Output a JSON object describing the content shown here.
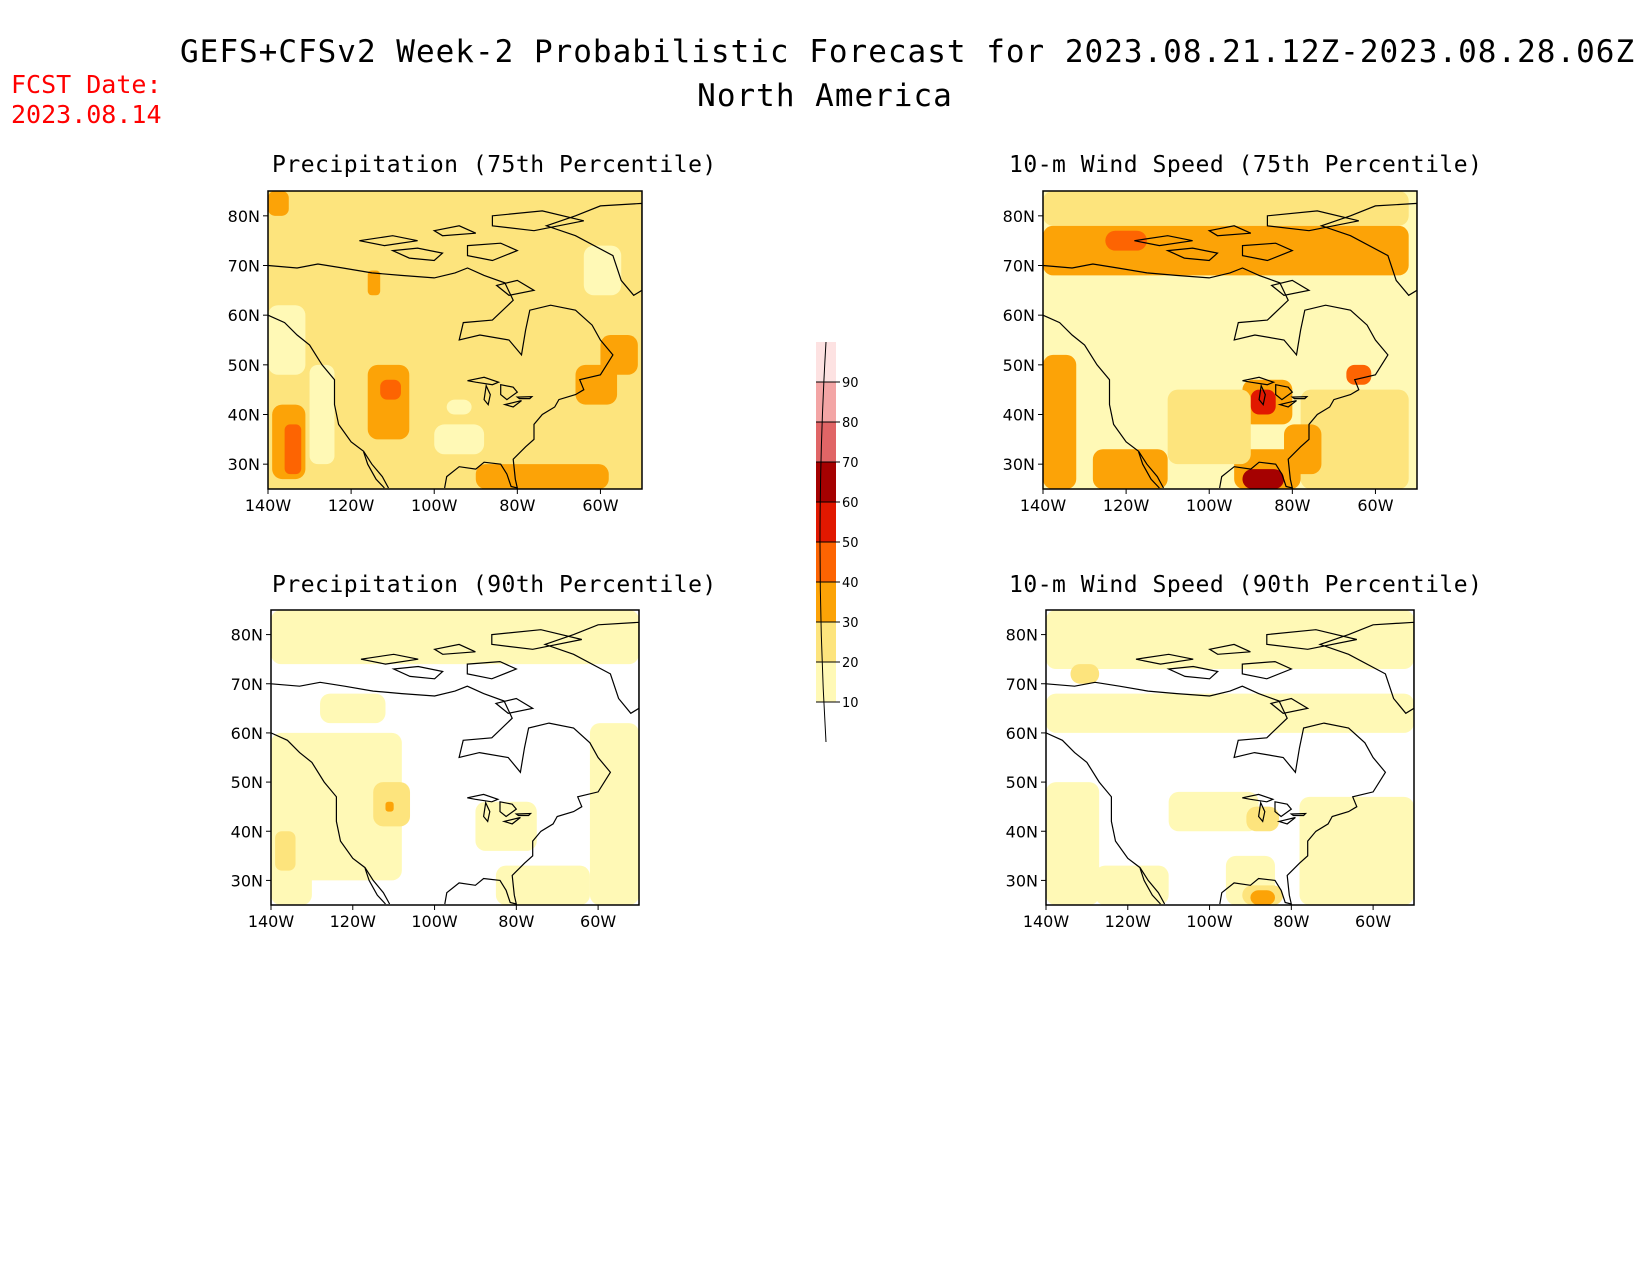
{
  "header": {
    "title_line1": "GEFS+CFSv2 Week-2 Probabilistic Forecast for 2023.08.21.12Z-2023.08.28.06Z",
    "title_line2": "North America",
    "fcst_label": "FCST Date:",
    "fcst_value": "2023.08.14"
  },
  "axes": {
    "lat_labels": [
      "80N",
      "70N",
      "60N",
      "50N",
      "40N",
      "30N"
    ],
    "lat_values": [
      80,
      70,
      60,
      50,
      40,
      30
    ],
    "lon_labels": [
      "140W",
      "120W",
      "100W",
      "80W",
      "60W"
    ],
    "lon_values": [
      -140,
      -120,
      -100,
      -80,
      -60
    ],
    "lat_range": [
      25,
      85
    ],
    "lon_range": [
      -140,
      -50
    ]
  },
  "colorbar": {
    "levels": [
      "10",
      "20",
      "30",
      "40",
      "50",
      "60",
      "70",
      "80",
      "90"
    ],
    "colors": [
      "#fff9b6",
      "#fde47d",
      "#fca307",
      "#fd6402",
      "#e11800",
      "#a50101",
      "#e06566",
      "#f3a5a5",
      "#fde2e2"
    ]
  },
  "panels": [
    {
      "title": "Precipitation (75th Percentile)",
      "background_color": "#fde47d",
      "regions": [
        {
          "level": 30,
          "lon": [
            -140,
            -135
          ],
          "lat": [
            80,
            85
          ]
        },
        {
          "level": 30,
          "lon": [
            -139,
            -131
          ],
          "lat": [
            27,
            42
          ]
        },
        {
          "level": 30,
          "lon": [
            -116,
            -106
          ],
          "lat": [
            35,
            50
          ]
        },
        {
          "level": 30,
          "lon": [
            -60,
            -51
          ],
          "lat": [
            48,
            56
          ]
        },
        {
          "level": 30,
          "lon": [
            -90,
            -58
          ],
          "lat": [
            25,
            30
          ]
        },
        {
          "level": 30,
          "lon": [
            -66,
            -56
          ],
          "lat": [
            42,
            50
          ]
        },
        {
          "level": 30,
          "lon": [
            -116,
            -113
          ],
          "lat": [
            64,
            69
          ]
        },
        {
          "level": 40,
          "lon": [
            -136,
            -132
          ],
          "lat": [
            28,
            38
          ]
        },
        {
          "level": 40,
          "lon": [
            -113,
            -108
          ],
          "lat": [
            43,
            47
          ]
        },
        {
          "level": 10,
          "lon": [
            -130,
            -124
          ],
          "lat": [
            30,
            50
          ]
        },
        {
          "level": 10,
          "lon": [
            -97,
            -91
          ],
          "lat": [
            40,
            43
          ]
        },
        {
          "level": 10,
          "lon": [
            -140,
            -131
          ],
          "lat": [
            48,
            62
          ]
        },
        {
          "level": 10,
          "lon": [
            -64,
            -55
          ],
          "lat": [
            64,
            74
          ]
        },
        {
          "level": 10,
          "lon": [
            -100,
            -88
          ],
          "lat": [
            32,
            38
          ]
        }
      ]
    },
    {
      "title": "10-m Wind Speed (75th Percentile)",
      "background_color": "#fff9b6",
      "regions": [
        {
          "level": 30,
          "lon": [
            -140,
            -52
          ],
          "lat": [
            68,
            78
          ]
        },
        {
          "level": 20,
          "lon": [
            -140,
            -52
          ],
          "lat": [
            78,
            85
          ]
        },
        {
          "level": 30,
          "lon": [
            -140,
            -132
          ],
          "lat": [
            25,
            52
          ]
        },
        {
          "level": 30,
          "lon": [
            -128,
            -110
          ],
          "lat": [
            25,
            33
          ]
        },
        {
          "level": 20,
          "lon": [
            -78,
            -52
          ],
          "lat": [
            25,
            45
          ]
        },
        {
          "level": 30,
          "lon": [
            -82,
            -73
          ],
          "lat": [
            28,
            38
          ]
        },
        {
          "level": 30,
          "lon": [
            -94,
            -78
          ],
          "lat": [
            25,
            33
          ]
        },
        {
          "level": 30,
          "lon": [
            -92,
            -80
          ],
          "lat": [
            38,
            47
          ]
        },
        {
          "level": 20,
          "lon": [
            -110,
            -90
          ],
          "lat": [
            30,
            45
          ]
        },
        {
          "level": 40,
          "lon": [
            -125,
            -115
          ],
          "lat": [
            73,
            77
          ]
        },
        {
          "level": 50,
          "lon": [
            -90,
            -84
          ],
          "lat": [
            40,
            45
          ]
        },
        {
          "level": 60,
          "lon": [
            -92,
            -82
          ],
          "lat": [
            25,
            29
          ]
        },
        {
          "level": 40,
          "lon": [
            -67,
            -61
          ],
          "lat": [
            46,
            50
          ]
        },
        {
          "level": 10,
          "lon": [
            -135,
            -125
          ],
          "lat": [
            52,
            62
          ]
        },
        {
          "level": 10,
          "lon": [
            -108,
            -98
          ],
          "lat": [
            48,
            55
          ]
        }
      ]
    },
    {
      "title": "Precipitation (90th Percentile)",
      "background_color": "#ffffff",
      "regions": [
        {
          "level": 10,
          "lon": [
            -140,
            -50
          ],
          "lat": [
            74,
            85
          ]
        },
        {
          "level": 10,
          "lon": [
            -140,
            -108
          ],
          "lat": [
            30,
            60
          ]
        },
        {
          "level": 10,
          "lon": [
            -140,
            -130
          ],
          "lat": [
            25,
            45
          ]
        },
        {
          "level": 10,
          "lon": [
            -62,
            -50
          ],
          "lat": [
            25,
            62
          ]
        },
        {
          "level": 10,
          "lon": [
            -85,
            -62
          ],
          "lat": [
            25,
            33
          ]
        },
        {
          "level": 10,
          "lon": [
            -90,
            -75
          ],
          "lat": [
            36,
            46
          ]
        },
        {
          "level": 10,
          "lon": [
            -128,
            -112
          ],
          "lat": [
            62,
            68
          ]
        },
        {
          "level": 20,
          "lon": [
            -115,
            -106
          ],
          "lat": [
            41,
            50
          ]
        },
        {
          "level": 20,
          "lon": [
            -139,
            -134
          ],
          "lat": [
            32,
            40
          ]
        },
        {
          "level": 30,
          "lon": [
            -112,
            -110
          ],
          "lat": [
            44,
            46
          ]
        }
      ]
    },
    {
      "title": "10-m Wind Speed (90th Percentile)",
      "background_color": "#ffffff",
      "regions": [
        {
          "level": 10,
          "lon": [
            -140,
            -50
          ],
          "lat": [
            73,
            85
          ]
        },
        {
          "level": 10,
          "lon": [
            -140,
            -127
          ],
          "lat": [
            25,
            50
          ]
        },
        {
          "level": 10,
          "lon": [
            -128,
            -110
          ],
          "lat": [
            25,
            33
          ]
        },
        {
          "level": 10,
          "lon": [
            -78,
            -50
          ],
          "lat": [
            25,
            47
          ]
        },
        {
          "level": 10,
          "lon": [
            -96,
            -84
          ],
          "lat": [
            25,
            35
          ]
        },
        {
          "level": 10,
          "lon": [
            -110,
            -88
          ],
          "lat": [
            40,
            48
          ]
        },
        {
          "level": 20,
          "lon": [
            -134,
            -127
          ],
          "lat": [
            70,
            74
          ]
        },
        {
          "level": 20,
          "lon": [
            -92,
            -82
          ],
          "lat": [
            25,
            29
          ]
        },
        {
          "level": 30,
          "lon": [
            -90,
            -84
          ],
          "lat": [
            25,
            28
          ]
        },
        {
          "level": 40,
          "lon": [
            -88,
            -86
          ],
          "lat": [
            41,
            43
          ]
        },
        {
          "level": 20,
          "lon": [
            -91,
            -83
          ],
          "lat": [
            40,
            45
          ]
        },
        {
          "level": 10,
          "lon": [
            -140,
            -50
          ],
          "lat": [
            60,
            68
          ]
        }
      ]
    }
  ]
}
